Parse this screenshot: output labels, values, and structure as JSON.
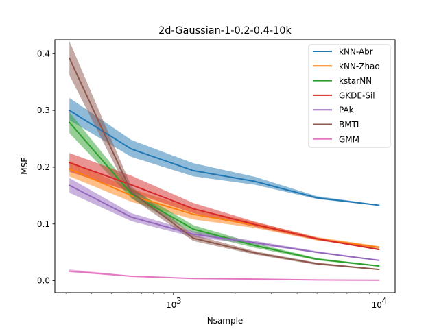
{
  "chart_data": {
    "type": "line",
    "title": "2d-Gaussian-1-0.2-0.4-10k",
    "xlabel": "Nsample",
    "ylabel": "MSE",
    "xscale": "log",
    "xlim": [
      265,
      12000
    ],
    "ylim": [
      -0.021,
      0.4245
    ],
    "x": [
      312,
      625,
      1250,
      2500,
      5000,
      10000
    ],
    "x_ticks": [
      {
        "value": 1000,
        "base": "10",
        "exp": "3"
      },
      {
        "value": 10000,
        "base": "10",
        "exp": "4"
      }
    ],
    "y_ticks": [
      {
        "value": 0.0,
        "label": "0.0"
      },
      {
        "value": 0.1,
        "label": "0.1"
      },
      {
        "value": 0.2,
        "label": "0.2"
      },
      {
        "value": 0.3,
        "label": "0.3"
      },
      {
        "value": 0.4,
        "label": "0.4"
      }
    ],
    "legend_position": "top-right",
    "grid": false,
    "series": [
      {
        "name": "kNN-Abr",
        "color": "#1f77b4",
        "values": [
          0.3,
          0.232,
          0.194,
          0.175,
          0.146,
          0.133
        ],
        "lower": [
          0.283,
          0.218,
          0.184,
          0.169,
          0.144,
          0.132
        ],
        "upper": [
          0.322,
          0.248,
          0.207,
          0.183,
          0.149,
          0.134
        ]
      },
      {
        "name": "kNN-Zhao",
        "color": "#ff7f0e",
        "values": [
          0.197,
          0.15,
          0.117,
          0.098,
          0.074,
          0.059
        ],
        "lower": [
          0.184,
          0.139,
          0.108,
          0.093,
          0.071,
          0.057
        ],
        "upper": [
          0.211,
          0.162,
          0.127,
          0.103,
          0.077,
          0.061
        ]
      },
      {
        "name": "kstarNN",
        "color": "#2ca02c",
        "values": [
          0.279,
          0.153,
          0.091,
          0.062,
          0.038,
          0.026
        ],
        "lower": [
          0.26,
          0.145,
          0.084,
          0.058,
          0.036,
          0.025
        ],
        "upper": [
          0.297,
          0.162,
          0.098,
          0.066,
          0.04,
          0.027
        ]
      },
      {
        "name": "GKDE-Sil",
        "color": "#d62728",
        "values": [
          0.208,
          0.169,
          0.127,
          0.099,
          0.074,
          0.055
        ],
        "lower": [
          0.192,
          0.156,
          0.119,
          0.095,
          0.072,
          0.054
        ],
        "upper": [
          0.225,
          0.185,
          0.137,
          0.104,
          0.076,
          0.057
        ]
      },
      {
        "name": "PAk",
        "color": "#9467bd",
        "values": [
          0.168,
          0.112,
          0.082,
          0.067,
          0.05,
          0.036
        ],
        "lower": [
          0.155,
          0.105,
          0.077,
          0.064,
          0.049,
          0.035
        ],
        "upper": [
          0.181,
          0.119,
          0.087,
          0.07,
          0.052,
          0.037
        ]
      },
      {
        "name": "BMTI",
        "color": "#8c564b",
        "values": [
          0.392,
          0.156,
          0.075,
          0.049,
          0.03,
          0.02
        ],
        "lower": [
          0.362,
          0.146,
          0.07,
          0.046,
          0.028,
          0.019
        ],
        "upper": [
          0.422,
          0.166,
          0.081,
          0.052,
          0.032,
          0.021
        ]
      },
      {
        "name": "GMM",
        "color": "#e377c2",
        "values": [
          0.017,
          0.008,
          0.004,
          0.003,
          0.0015,
          0.001
        ],
        "lower": [
          0.015,
          0.007,
          0.0035,
          0.0025,
          0.001,
          0.0008
        ],
        "upper": [
          0.02,
          0.009,
          0.0048,
          0.0035,
          0.002,
          0.0013
        ]
      }
    ]
  }
}
